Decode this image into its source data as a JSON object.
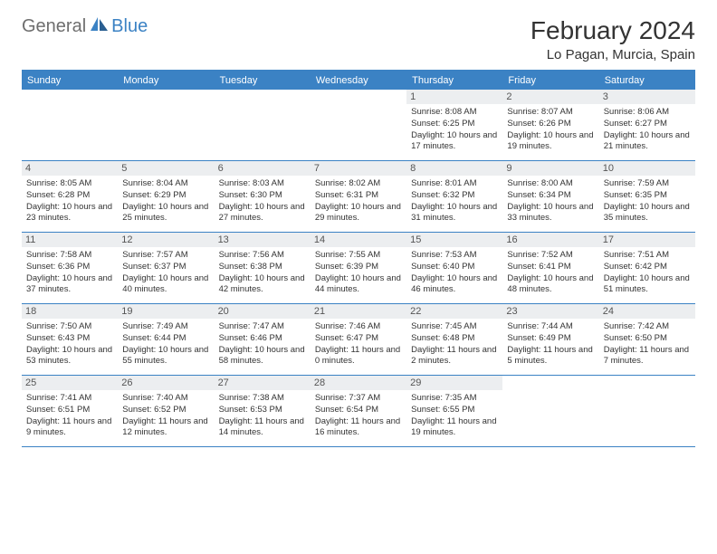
{
  "logo": {
    "text1": "General",
    "text2": "Blue"
  },
  "title": "February 2024",
  "location": "Lo Pagan, Murcia, Spain",
  "colors": {
    "accent": "#3b82c4",
    "grayBar": "#eceef0",
    "logoGray": "#6e6e6e",
    "text": "#333333"
  },
  "dayNames": [
    "Sunday",
    "Monday",
    "Tuesday",
    "Wednesday",
    "Thursday",
    "Friday",
    "Saturday"
  ],
  "weeks": [
    [
      null,
      null,
      null,
      null,
      {
        "n": "1",
        "sr": "8:08 AM",
        "ss": "6:25 PM",
        "dl": "10 hours and 17 minutes."
      },
      {
        "n": "2",
        "sr": "8:07 AM",
        "ss": "6:26 PM",
        "dl": "10 hours and 19 minutes."
      },
      {
        "n": "3",
        "sr": "8:06 AM",
        "ss": "6:27 PM",
        "dl": "10 hours and 21 minutes."
      }
    ],
    [
      {
        "n": "4",
        "sr": "8:05 AM",
        "ss": "6:28 PM",
        "dl": "10 hours and 23 minutes."
      },
      {
        "n": "5",
        "sr": "8:04 AM",
        "ss": "6:29 PM",
        "dl": "10 hours and 25 minutes."
      },
      {
        "n": "6",
        "sr": "8:03 AM",
        "ss": "6:30 PM",
        "dl": "10 hours and 27 minutes."
      },
      {
        "n": "7",
        "sr": "8:02 AM",
        "ss": "6:31 PM",
        "dl": "10 hours and 29 minutes."
      },
      {
        "n": "8",
        "sr": "8:01 AM",
        "ss": "6:32 PM",
        "dl": "10 hours and 31 minutes."
      },
      {
        "n": "9",
        "sr": "8:00 AM",
        "ss": "6:34 PM",
        "dl": "10 hours and 33 minutes."
      },
      {
        "n": "10",
        "sr": "7:59 AM",
        "ss": "6:35 PM",
        "dl": "10 hours and 35 minutes."
      }
    ],
    [
      {
        "n": "11",
        "sr": "7:58 AM",
        "ss": "6:36 PM",
        "dl": "10 hours and 37 minutes."
      },
      {
        "n": "12",
        "sr": "7:57 AM",
        "ss": "6:37 PM",
        "dl": "10 hours and 40 minutes."
      },
      {
        "n": "13",
        "sr": "7:56 AM",
        "ss": "6:38 PM",
        "dl": "10 hours and 42 minutes."
      },
      {
        "n": "14",
        "sr": "7:55 AM",
        "ss": "6:39 PM",
        "dl": "10 hours and 44 minutes."
      },
      {
        "n": "15",
        "sr": "7:53 AM",
        "ss": "6:40 PM",
        "dl": "10 hours and 46 minutes."
      },
      {
        "n": "16",
        "sr": "7:52 AM",
        "ss": "6:41 PM",
        "dl": "10 hours and 48 minutes."
      },
      {
        "n": "17",
        "sr": "7:51 AM",
        "ss": "6:42 PM",
        "dl": "10 hours and 51 minutes."
      }
    ],
    [
      {
        "n": "18",
        "sr": "7:50 AM",
        "ss": "6:43 PM",
        "dl": "10 hours and 53 minutes."
      },
      {
        "n": "19",
        "sr": "7:49 AM",
        "ss": "6:44 PM",
        "dl": "10 hours and 55 minutes."
      },
      {
        "n": "20",
        "sr": "7:47 AM",
        "ss": "6:46 PM",
        "dl": "10 hours and 58 minutes."
      },
      {
        "n": "21",
        "sr": "7:46 AM",
        "ss": "6:47 PM",
        "dl": "11 hours and 0 minutes."
      },
      {
        "n": "22",
        "sr": "7:45 AM",
        "ss": "6:48 PM",
        "dl": "11 hours and 2 minutes."
      },
      {
        "n": "23",
        "sr": "7:44 AM",
        "ss": "6:49 PM",
        "dl": "11 hours and 5 minutes."
      },
      {
        "n": "24",
        "sr": "7:42 AM",
        "ss": "6:50 PM",
        "dl": "11 hours and 7 minutes."
      }
    ],
    [
      {
        "n": "25",
        "sr": "7:41 AM",
        "ss": "6:51 PM",
        "dl": "11 hours and 9 minutes."
      },
      {
        "n": "26",
        "sr": "7:40 AM",
        "ss": "6:52 PM",
        "dl": "11 hours and 12 minutes."
      },
      {
        "n": "27",
        "sr": "7:38 AM",
        "ss": "6:53 PM",
        "dl": "11 hours and 14 minutes."
      },
      {
        "n": "28",
        "sr": "7:37 AM",
        "ss": "6:54 PM",
        "dl": "11 hours and 16 minutes."
      },
      {
        "n": "29",
        "sr": "7:35 AM",
        "ss": "6:55 PM",
        "dl": "11 hours and 19 minutes."
      },
      null,
      null
    ]
  ],
  "labels": {
    "sunrise": "Sunrise:",
    "sunset": "Sunset:",
    "daylight": "Daylight:"
  }
}
